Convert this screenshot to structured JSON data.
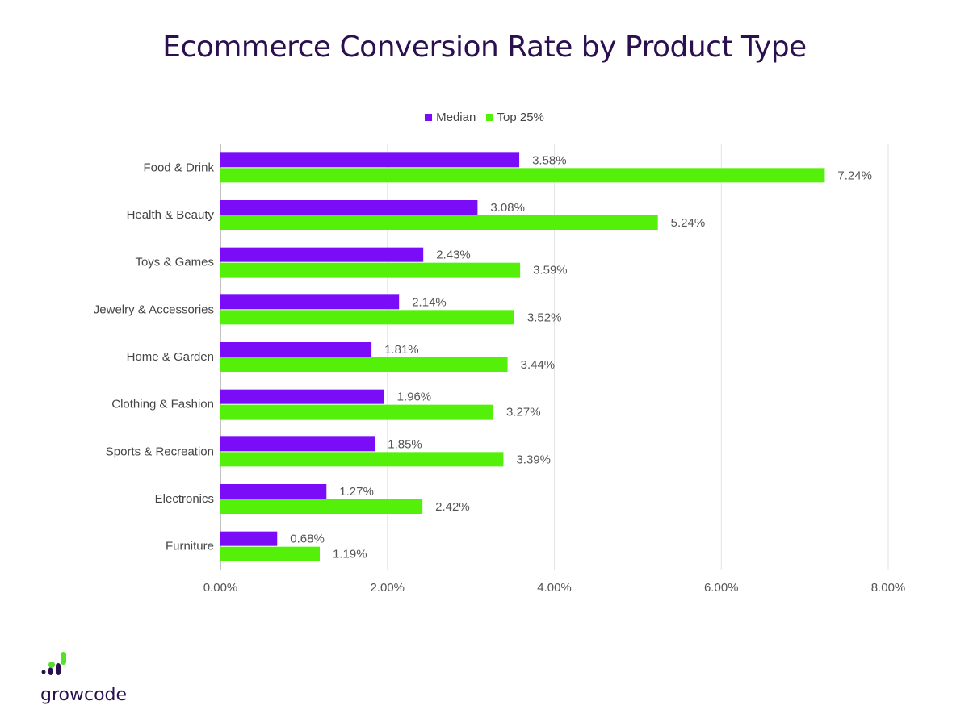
{
  "chart_data": {
    "type": "bar",
    "orientation": "horizontal",
    "title": "Ecommerce Conversion Rate by Product Type",
    "categories": [
      "Food & Drink",
      "Health & Beauty",
      "Toys & Games",
      "Jewelry & Accessories",
      "Home & Garden",
      "Clothing & Fashion",
      "Sports & Recreation",
      "Electronics",
      "Furniture"
    ],
    "series": [
      {
        "name": "Median",
        "color": "#7b0cf7",
        "values": [
          3.58,
          3.08,
          2.43,
          2.14,
          1.81,
          1.96,
          1.85,
          1.27,
          0.68
        ],
        "labels": [
          "3.58%",
          "3.08%",
          "2.43%",
          "2.14%",
          "1.81%",
          "1.96%",
          "1.85%",
          "1.27%",
          "0.68%"
        ]
      },
      {
        "name": "Top 25%",
        "color": "#55f00a",
        "values": [
          7.24,
          5.24,
          3.59,
          3.52,
          3.44,
          3.27,
          3.39,
          2.42,
          1.19
        ],
        "labels": [
          "7.24%",
          "5.24%",
          "3.59%",
          "3.52%",
          "3.44%",
          "3.27%",
          "3.39%",
          "2.42%",
          "1.19%"
        ]
      }
    ],
    "xlim": [
      0,
      8
    ],
    "xticks": [
      "0.00%",
      "2.00%",
      "4.00%",
      "6.00%",
      "8.00%"
    ],
    "grid": true,
    "legend_position": "top"
  },
  "brand": {
    "name": "growcode"
  }
}
